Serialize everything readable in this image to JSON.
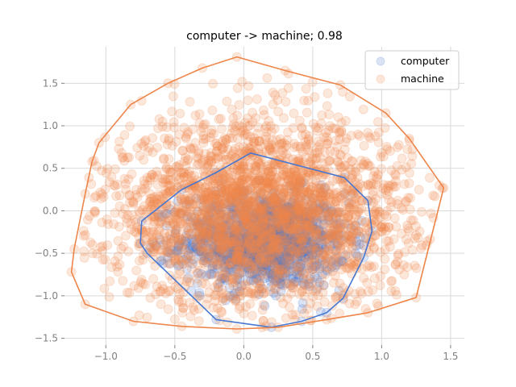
{
  "chart_data": {
    "type": "scatter",
    "title": "computer -> machine; 0.98",
    "xlabel": "",
    "ylabel": "",
    "xlim": [
      -1.3,
      1.6
    ],
    "ylim": [
      -1.58,
      1.93
    ],
    "xticks": [
      -1.0,
      -0.5,
      0.0,
      0.5,
      1.0,
      1.5
    ],
    "xtick_labels": [
      "−1.0",
      "−0.5",
      "0.0",
      "0.5",
      "1.0",
      "1.5"
    ],
    "yticks": [
      -1.5,
      -1.0,
      -0.5,
      0.0,
      0.5,
      1.0,
      1.5
    ],
    "ytick_labels": [
      "−1.5",
      "−1.0",
      "−0.5",
      "0.0",
      "0.5",
      "1.0",
      "1.5"
    ],
    "grid": true,
    "legend_position": "top-right",
    "series": [
      {
        "name": "computer",
        "color": "#4878d0",
        "marker_alpha": 0.2,
        "point_cloud": {
          "count": 1200,
          "center": [
            0.15,
            -0.35
          ],
          "spread": [
            0.3,
            0.28
          ]
        },
        "hull": [
          [
            0.05,
            0.68
          ],
          [
            0.73,
            0.39
          ],
          [
            0.9,
            0.12
          ],
          [
            0.93,
            -0.24
          ],
          [
            0.87,
            -0.55
          ],
          [
            0.72,
            -1.03
          ],
          [
            0.6,
            -1.2
          ],
          [
            0.42,
            -1.3
          ],
          [
            0.2,
            -1.37
          ],
          [
            -0.2,
            -1.28
          ],
          [
            -0.7,
            -0.5
          ],
          [
            -0.75,
            -0.38
          ],
          [
            -0.74,
            -0.12
          ],
          [
            -0.45,
            0.25
          ],
          [
            -0.2,
            0.45
          ]
        ]
      },
      {
        "name": "machine",
        "color": "#ee854a",
        "marker_alpha": 0.2,
        "point_cloud": {
          "count": 2600,
          "center": [
            0.12,
            -0.02
          ],
          "spread": [
            0.55,
            0.55
          ]
        },
        "hull": [
          [
            -0.05,
            1.81
          ],
          [
            0.3,
            1.65
          ],
          [
            0.7,
            1.48
          ],
          [
            1.03,
            1.15
          ],
          [
            1.2,
            0.85
          ],
          [
            1.45,
            0.27
          ],
          [
            1.25,
            -1.02
          ],
          [
            0.9,
            -1.2
          ],
          [
            0.6,
            -1.28
          ],
          [
            0.25,
            -1.37
          ],
          [
            -0.05,
            -1.39
          ],
          [
            -0.45,
            -1.36
          ],
          [
            -0.8,
            -1.3
          ],
          [
            -1.15,
            -1.1
          ],
          [
            -1.25,
            -0.72
          ],
          [
            -1.23,
            -0.45
          ],
          [
            -1.15,
            0.2
          ],
          [
            -1.1,
            0.58
          ],
          [
            -1.05,
            0.8
          ],
          [
            -0.82,
            1.25
          ],
          [
            -0.55,
            1.5
          ],
          [
            -0.3,
            1.68
          ]
        ]
      }
    ]
  }
}
